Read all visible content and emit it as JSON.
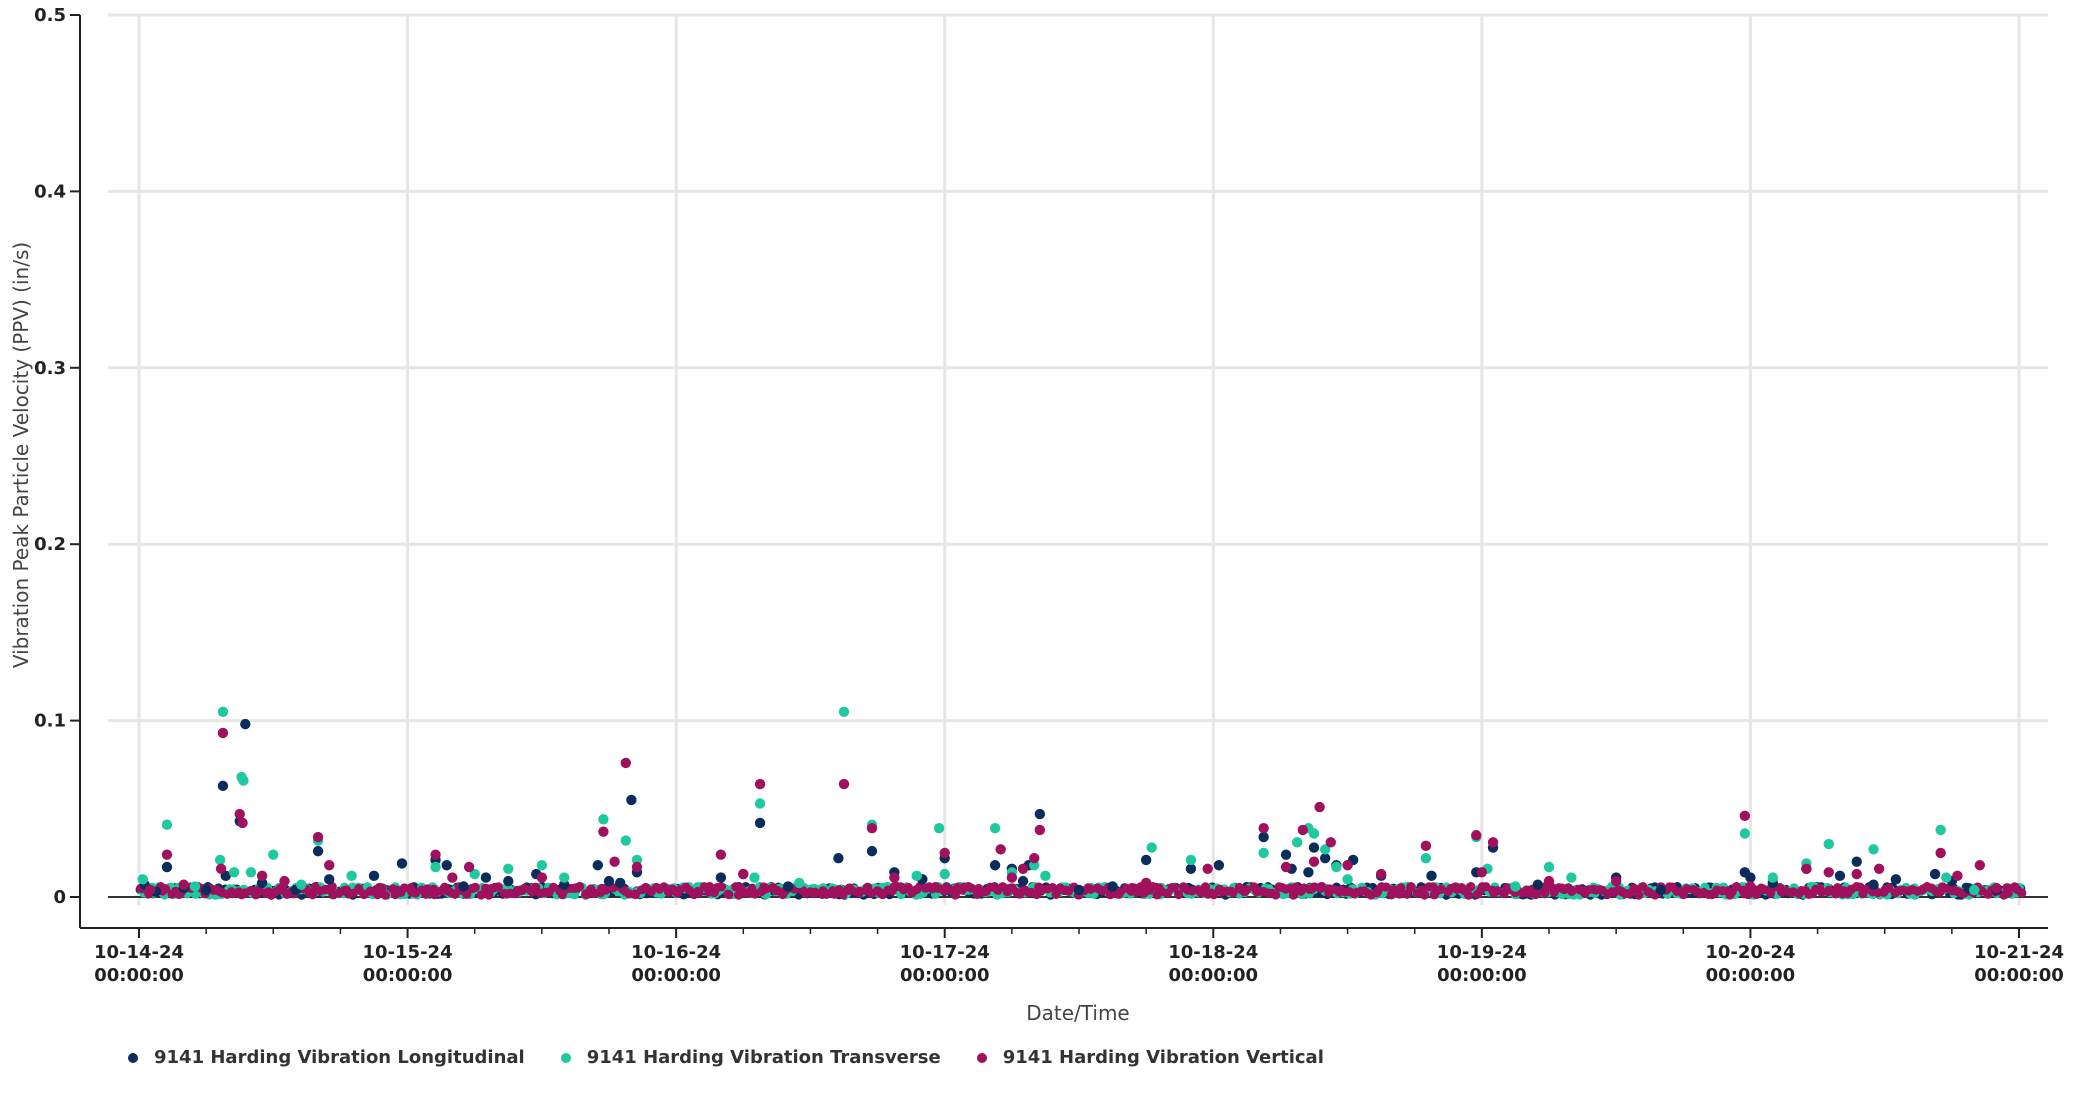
{
  "chart_data": {
    "type": "scatter",
    "xlabel": "Date/Time",
    "ylabel": "Vibration Peak Particle Velocity (PPV) (in/s)",
    "ylim": [
      0,
      0.5
    ],
    "xlim": [
      "2024-10-14 00:00:00",
      "2024-10-21 00:00:00"
    ],
    "y_ticks": [
      "0",
      "0.1",
      "0.2",
      "0.3",
      "0.4",
      "0.5"
    ],
    "x_ticks": [
      {
        "date": "10-14-24",
        "time": "00:00:00"
      },
      {
        "date": "10-15-24",
        "time": "00:00:00"
      },
      {
        "date": "10-16-24",
        "time": "00:00:00"
      },
      {
        "date": "10-17-24",
        "time": "00:00:00"
      },
      {
        "date": "10-18-24",
        "time": "00:00:00"
      },
      {
        "date": "10-19-24",
        "time": "00:00:00"
      },
      {
        "date": "10-20-24",
        "time": "00:00:00"
      },
      {
        "date": "10-21-24",
        "time": "00:00:00"
      }
    ],
    "grid": true,
    "legend_position": "bottom-left",
    "series": [
      {
        "name": "9141 Harding Vibration Longitudinal",
        "color": "#0b2d5b",
        "points": [
          [
            "2024-10-14 00:30",
            0.007
          ],
          [
            "2024-10-14 01:30",
            0.003
          ],
          [
            "2024-10-14 02:30",
            0.017
          ],
          [
            "2024-10-14 04:00",
            0.005
          ],
          [
            "2024-10-14 06:00",
            0.004
          ],
          [
            "2024-10-14 07:30",
            0.063
          ],
          [
            "2024-10-14 07:45",
            0.012
          ],
          [
            "2024-10-14 09:30",
            0.098
          ],
          [
            "2024-10-14 09:00",
            0.043
          ],
          [
            "2024-10-14 11:00",
            0.008
          ],
          [
            "2024-10-14 14:00",
            0.004
          ],
          [
            "2024-10-14 16:00",
            0.026
          ],
          [
            "2024-10-14 17:00",
            0.01
          ],
          [
            "2024-10-14 21:00",
            0.012
          ],
          [
            "2024-10-14 23:30",
            0.019
          ],
          [
            "2024-10-15 02:30",
            0.021
          ],
          [
            "2024-10-15 03:30",
            0.018
          ],
          [
            "2024-10-15 05:00",
            0.006
          ],
          [
            "2024-10-15 07:00",
            0.011
          ],
          [
            "2024-10-15 09:00",
            0.009
          ],
          [
            "2024-10-15 11:30",
            0.013
          ],
          [
            "2024-10-15 14:00",
            0.007
          ],
          [
            "2024-10-15 17:00",
            0.018
          ],
          [
            "2024-10-15 18:00",
            0.009
          ],
          [
            "2024-10-15 20:00",
            0.055
          ],
          [
            "2024-10-15 20:30",
            0.014
          ],
          [
            "2024-10-15 19:00",
            0.008
          ],
          [
            "2024-10-16 04:00",
            0.011
          ],
          [
            "2024-10-16 07:30",
            0.042
          ],
          [
            "2024-10-16 06:00",
            0.013
          ],
          [
            "2024-10-16 10:00",
            0.006
          ],
          [
            "2024-10-16 14:30",
            0.022
          ],
          [
            "2024-10-16 17:30",
            0.026
          ],
          [
            "2024-10-16 19:30",
            0.014
          ],
          [
            "2024-10-16 22:00",
            0.01
          ],
          [
            "2024-10-17 00:00",
            0.022
          ],
          [
            "2024-10-17 04:30",
            0.018
          ],
          [
            "2024-10-17 06:00",
            0.016
          ],
          [
            "2024-10-17 07:00",
            0.009
          ],
          [
            "2024-10-17 08:30",
            0.047
          ],
          [
            "2024-10-17 07:30",
            0.018
          ],
          [
            "2024-10-17 12:00",
            0.004
          ],
          [
            "2024-10-17 15:00",
            0.006
          ],
          [
            "2024-10-17 18:00",
            0.021
          ],
          [
            "2024-10-17 22:00",
            0.016
          ],
          [
            "2024-10-18 00:30",
            0.018
          ],
          [
            "2024-10-18 04:30",
            0.034
          ],
          [
            "2024-10-18 06:30",
            0.024
          ],
          [
            "2024-10-18 07:00",
            0.016
          ],
          [
            "2024-10-18 08:30",
            0.014
          ],
          [
            "2024-10-18 09:00",
            0.028
          ],
          [
            "2024-10-18 10:00",
            0.022
          ],
          [
            "2024-10-18 11:00",
            0.018
          ],
          [
            "2024-10-18 12:30",
            0.021
          ],
          [
            "2024-10-18 15:00",
            0.012
          ],
          [
            "2024-10-18 19:30",
            0.012
          ],
          [
            "2024-10-18 23:30",
            0.014
          ],
          [
            "2024-10-19 01:00",
            0.028
          ],
          [
            "2024-10-19 05:00",
            0.007
          ],
          [
            "2024-10-19 12:00",
            0.011
          ],
          [
            "2024-10-19 16:00",
            0.004
          ],
          [
            "2024-10-19 23:30",
            0.014
          ],
          [
            "2024-10-20 00:00",
            0.011
          ],
          [
            "2024-10-20 02:00",
            0.008
          ],
          [
            "2024-10-20 05:00",
            0.016
          ],
          [
            "2024-10-20 08:00",
            0.012
          ],
          [
            "2024-10-20 09:30",
            0.02
          ],
          [
            "2024-10-20 11:00",
            0.007
          ],
          [
            "2024-10-20 13:00",
            0.01
          ],
          [
            "2024-10-20 16:30",
            0.013
          ],
          [
            "2024-10-20 18:00",
            0.009
          ],
          [
            "2024-10-20 19:30",
            0.005
          ],
          [
            "2024-10-20 22:00",
            0.004
          ]
        ]
      },
      {
        "name": "9141 Harding Vibration Transverse",
        "color": "#1ec99f",
        "points": [
          [
            "2024-10-14 00:20",
            0.01
          ],
          [
            "2024-10-14 02:30",
            0.041
          ],
          [
            "2024-10-14 05:00",
            0.006
          ],
          [
            "2024-10-14 07:30",
            0.105
          ],
          [
            "2024-10-14 07:15",
            0.021
          ],
          [
            "2024-10-14 09:10",
            0.068
          ],
          [
            "2024-10-14 09:20",
            0.066
          ],
          [
            "2024-10-14 08:30",
            0.014
          ],
          [
            "2024-10-14 10:00",
            0.014
          ],
          [
            "2024-10-14 12:00",
            0.024
          ],
          [
            "2024-10-14 14:30",
            0.007
          ],
          [
            "2024-10-14 16:00",
            0.032
          ],
          [
            "2024-10-14 19:00",
            0.012
          ],
          [
            "2024-10-15 02:30",
            0.017
          ],
          [
            "2024-10-15 06:00",
            0.013
          ],
          [
            "2024-10-15 09:00",
            0.016
          ],
          [
            "2024-10-15 12:00",
            0.018
          ],
          [
            "2024-10-15 14:00",
            0.011
          ],
          [
            "2024-10-15 17:30",
            0.044
          ],
          [
            "2024-10-15 19:30",
            0.032
          ],
          [
            "2024-10-15 20:30",
            0.021
          ],
          [
            "2024-10-16 07:30",
            0.053
          ],
          [
            "2024-10-16 07:00",
            0.011
          ],
          [
            "2024-10-16 11:00",
            0.008
          ],
          [
            "2024-10-16 15:00",
            0.105
          ],
          [
            "2024-10-16 17:30",
            0.041
          ],
          [
            "2024-10-16 21:30",
            0.012
          ],
          [
            "2024-10-16 23:30",
            0.039
          ],
          [
            "2024-10-17 00:00",
            0.013
          ],
          [
            "2024-10-17 04:30",
            0.039
          ],
          [
            "2024-10-17 06:00",
            0.014
          ],
          [
            "2024-10-17 08:00",
            0.018
          ],
          [
            "2024-10-17 09:00",
            0.012
          ],
          [
            "2024-10-17 18:30",
            0.028
          ],
          [
            "2024-10-17 22:00",
            0.021
          ],
          [
            "2024-10-18 04:30",
            0.025
          ],
          [
            "2024-10-18 07:30",
            0.031
          ],
          [
            "2024-10-18 08:30",
            0.039
          ],
          [
            "2024-10-18 09:00",
            0.036
          ],
          [
            "2024-10-18 10:00",
            0.027
          ],
          [
            "2024-10-18 11:00",
            0.017
          ],
          [
            "2024-10-18 12:00",
            0.01
          ],
          [
            "2024-10-18 19:00",
            0.022
          ],
          [
            "2024-10-18 23:30",
            0.034
          ],
          [
            "2024-10-19 00:30",
            0.016
          ],
          [
            "2024-10-19 03:00",
            0.006
          ],
          [
            "2024-10-19 06:00",
            0.017
          ],
          [
            "2024-10-19 08:00",
            0.011
          ],
          [
            "2024-10-19 23:30",
            0.036
          ],
          [
            "2024-10-20 02:00",
            0.011
          ],
          [
            "2024-10-20 05:00",
            0.019
          ],
          [
            "2024-10-20 07:00",
            0.03
          ],
          [
            "2024-10-20 11:00",
            0.027
          ],
          [
            "2024-10-20 09:30",
            0.013
          ],
          [
            "2024-10-20 17:00",
            0.038
          ],
          [
            "2024-10-20 17:30",
            0.011
          ],
          [
            "2024-10-20 20:00",
            0.004
          ]
        ]
      },
      {
        "name": "9141 Harding Vibration Vertical",
        "color": "#a0105c",
        "points": [
          [
            "2024-10-14 01:00",
            0.004
          ],
          [
            "2024-10-14 02:30",
            0.024
          ],
          [
            "2024-10-14 04:00",
            0.007
          ],
          [
            "2024-10-14 07:30",
            0.093
          ],
          [
            "2024-10-14 07:20",
            0.016
          ],
          [
            "2024-10-14 09:00",
            0.047
          ],
          [
            "2024-10-14 09:15",
            0.042
          ],
          [
            "2024-10-14 11:00",
            0.012
          ],
          [
            "2024-10-14 13:00",
            0.009
          ],
          [
            "2024-10-14 16:00",
            0.034
          ],
          [
            "2024-10-14 17:00",
            0.018
          ],
          [
            "2024-10-15 02:30",
            0.024
          ],
          [
            "2024-10-15 05:30",
            0.017
          ],
          [
            "2024-10-15 04:00",
            0.011
          ],
          [
            "2024-10-15 12:00",
            0.011
          ],
          [
            "2024-10-15 17:30",
            0.037
          ],
          [
            "2024-10-15 18:30",
            0.02
          ],
          [
            "2024-10-15 19:30",
            0.076
          ],
          [
            "2024-10-15 20:30",
            0.017
          ],
          [
            "2024-10-16 04:00",
            0.024
          ],
          [
            "2024-10-16 07:30",
            0.064
          ],
          [
            "2024-10-16 06:00",
            0.013
          ],
          [
            "2024-10-16 15:00",
            0.064
          ],
          [
            "2024-10-16 17:30",
            0.039
          ],
          [
            "2024-10-16 19:30",
            0.011
          ],
          [
            "2024-10-17 00:00",
            0.025
          ],
          [
            "2024-10-17 05:00",
            0.027
          ],
          [
            "2024-10-17 07:00",
            0.016
          ],
          [
            "2024-10-17 08:00",
            0.022
          ],
          [
            "2024-10-17 08:30",
            0.038
          ],
          [
            "2024-10-17 06:00",
            0.011
          ],
          [
            "2024-10-17 18:00",
            0.008
          ],
          [
            "2024-10-17 23:30",
            0.016
          ],
          [
            "2024-10-18 04:30",
            0.039
          ],
          [
            "2024-10-18 06:30",
            0.017
          ],
          [
            "2024-10-18 08:00",
            0.038
          ],
          [
            "2024-10-18 09:30",
            0.051
          ],
          [
            "2024-10-18 09:00",
            0.02
          ],
          [
            "2024-10-18 10:30",
            0.031
          ],
          [
            "2024-10-18 12:00",
            0.018
          ],
          [
            "2024-10-18 15:00",
            0.013
          ],
          [
            "2024-10-18 19:00",
            0.029
          ],
          [
            "2024-10-18 23:30",
            0.035
          ],
          [
            "2024-10-19 01:00",
            0.031
          ],
          [
            "2024-10-19 00:00",
            0.014
          ],
          [
            "2024-10-19 06:00",
            0.009
          ],
          [
            "2024-10-19 12:00",
            0.009
          ],
          [
            "2024-10-19 23:30",
            0.046
          ],
          [
            "2024-10-20 00:00",
            0.006
          ],
          [
            "2024-10-20 05:00",
            0.016
          ],
          [
            "2024-10-20 07:00",
            0.014
          ],
          [
            "2024-10-20 09:30",
            0.013
          ],
          [
            "2024-10-20 11:30",
            0.016
          ],
          [
            "2024-10-20 17:00",
            0.025
          ],
          [
            "2024-10-20 18:30",
            0.012
          ],
          [
            "2024-10-20 20:30",
            0.018
          ],
          [
            "2024-10-20 22:00",
            0.005
          ]
        ],
        "baseline": {
          "from": "2024-10-14 00:00",
          "to": "2024-10-21 00:00",
          "min": 0.001,
          "max": 0.006
        }
      }
    ]
  }
}
